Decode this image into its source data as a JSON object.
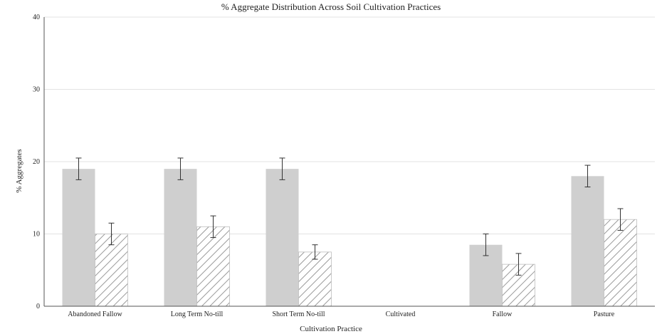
{
  "chart_data": {
    "type": "bar",
    "title": "% Aggregate Distribution Across Soil Cultivation Practices",
    "xlabel": "Cultivation Practice",
    "ylabel": "% Aggregates",
    "ylim": [
      0,
      40
    ],
    "yticks": [
      0,
      10,
      20,
      30,
      40
    ],
    "grid": true,
    "categories": [
      "Abandoned Fallow",
      "Long Term No-till",
      "Short Term No-till",
      "Cultivated",
      "Fallow",
      "Pasture"
    ],
    "series": [
      {
        "values": [
          19.0,
          19.0,
          19.0,
          0,
          8.5,
          18.0
        ],
        "errors": [
          1.5,
          1.5,
          1.5,
          0,
          1.5,
          1.5
        ]
      },
      {
        "values": [
          10.0,
          11.0,
          7.5,
          0,
          5.8,
          12.0
        ],
        "errors": [
          1.5,
          1.5,
          1.0,
          0,
          1.5,
          1.5
        ]
      }
    ],
    "colors": [
      "#cfcfcf",
      "#ffffff"
    ]
  }
}
